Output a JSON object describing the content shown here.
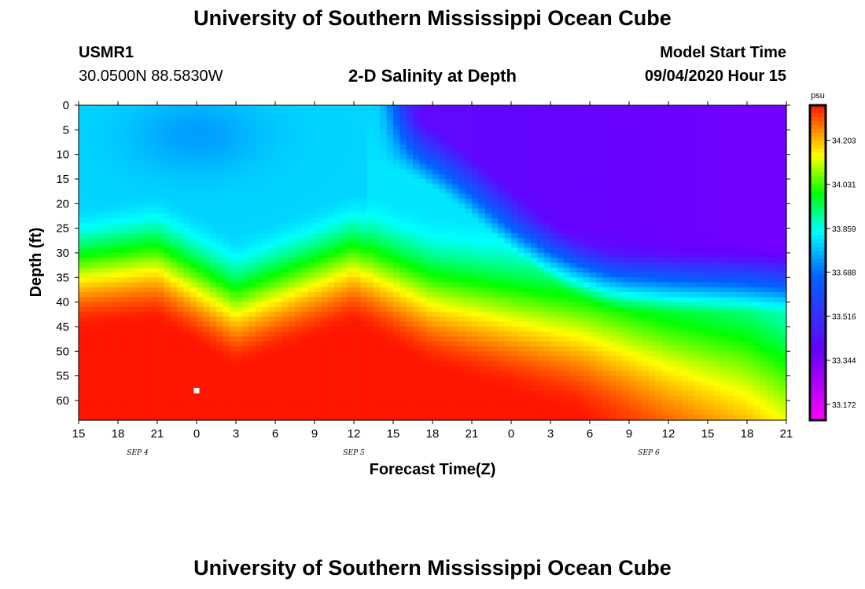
{
  "header": {
    "main_title": "University of Southern Mississippi Ocean Cube",
    "station_id": "USMR1",
    "station_coords": "30.0500N 88.5830W",
    "plot_title": "2-D Salinity at Depth",
    "model_label": "Model Start Time",
    "model_time": "09/04/2020 Hour 15"
  },
  "footer": {
    "title": "University of Southern Mississippi Ocean Cube"
  },
  "chart_data": {
    "type": "heatmap",
    "title": "2-D Salinity at Depth",
    "xlabel": "Forecast Time(Z)",
    "ylabel": "Depth (ft)",
    "x_tick_labels": [
      "15",
      "18",
      "21",
      "0",
      "3",
      "6",
      "9",
      "12",
      "15",
      "18",
      "21",
      "0",
      "3",
      "6",
      "9",
      "12",
      "15",
      "18",
      "21"
    ],
    "x_range_hours": [
      0,
      54
    ],
    "date_labels": [
      {
        "text": "SEP 4",
        "hour": 4.5
      },
      {
        "text": "SEP 5",
        "hour": 21
      },
      {
        "text": "SEP 6",
        "hour": 43.5
      }
    ],
    "y_ticks": [
      0,
      5,
      10,
      15,
      20,
      25,
      30,
      35,
      40,
      45,
      50,
      55,
      60
    ],
    "ylim": [
      0,
      64
    ],
    "colorbar": {
      "unit": "psu",
      "ticks": [
        "34.203",
        "34.031",
        "33.859",
        "33.688",
        "33.516",
        "33.344",
        "33.172"
      ],
      "tick_values": [
        34.203,
        34.031,
        33.859,
        33.688,
        33.516,
        33.344,
        33.172
      ],
      "vmin": 33.11,
      "vmax": 34.34
    },
    "marker": {
      "hour": 9,
      "depth": 58
    },
    "colors": {
      "high": "#ff1500",
      "mid_high": "#ffff00",
      "mid": "#00ff00",
      "mid_low": "#00ffff",
      "low": "#0064ff",
      "lower": "#6600ff",
      "lowest": "#ff00ff"
    }
  }
}
